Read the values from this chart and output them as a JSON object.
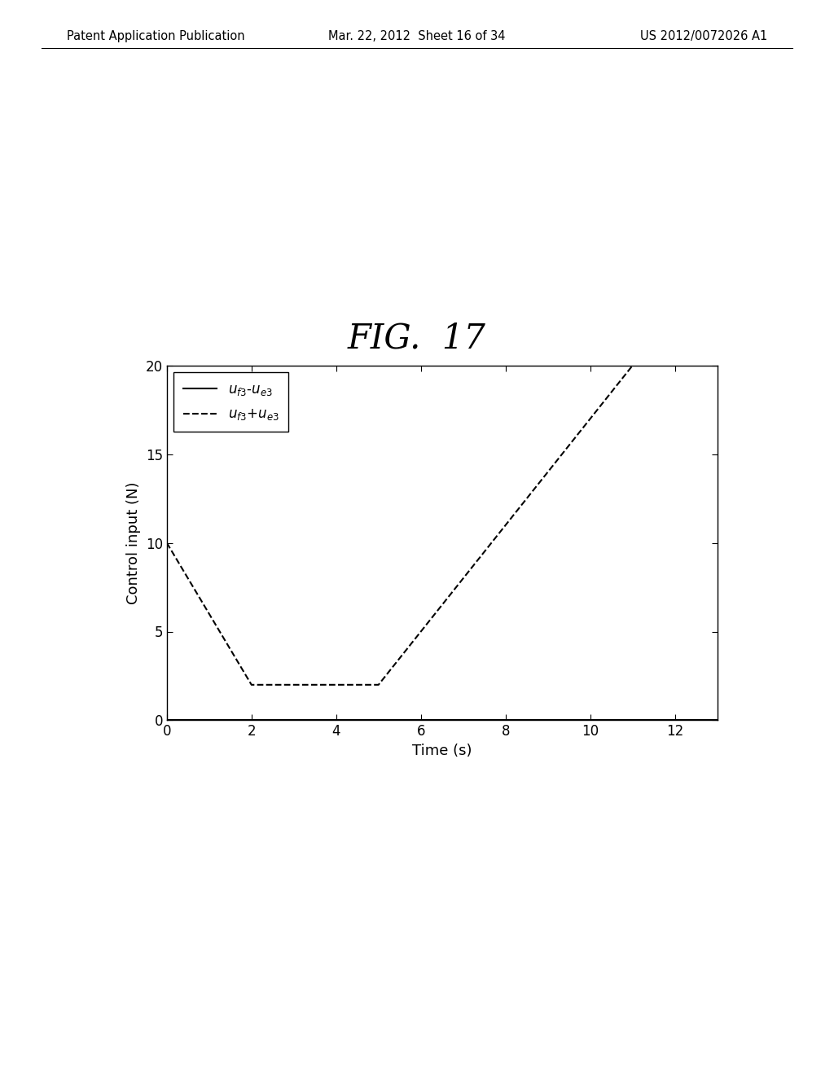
{
  "title": "FIG.  17",
  "xlabel": "Time (s)",
  "ylabel": "Control input (N)",
  "xlim": [
    0,
    13
  ],
  "ylim": [
    0,
    20
  ],
  "xticks": [
    0,
    2,
    4,
    6,
    8,
    10,
    12
  ],
  "yticks": [
    0,
    5,
    10,
    15,
    20
  ],
  "line1_label": "$u_{f3}$-$u_{e3}$",
  "line2_label": "$u_{f3}$+$u_{e3}$",
  "line1_x": [
    0,
    13
  ],
  "line1_y": [
    0,
    0
  ],
  "line2_x": [
    0,
    2,
    5,
    11,
    13
  ],
  "line2_y": [
    10,
    2,
    2,
    20,
    20
  ],
  "background_color": "#ffffff",
  "line_color": "#000000",
  "header_left": "Patent Application Publication",
  "header_mid": "Mar. 22, 2012  Sheet 16 of 34",
  "header_right": "US 2012/0072026 A1"
}
